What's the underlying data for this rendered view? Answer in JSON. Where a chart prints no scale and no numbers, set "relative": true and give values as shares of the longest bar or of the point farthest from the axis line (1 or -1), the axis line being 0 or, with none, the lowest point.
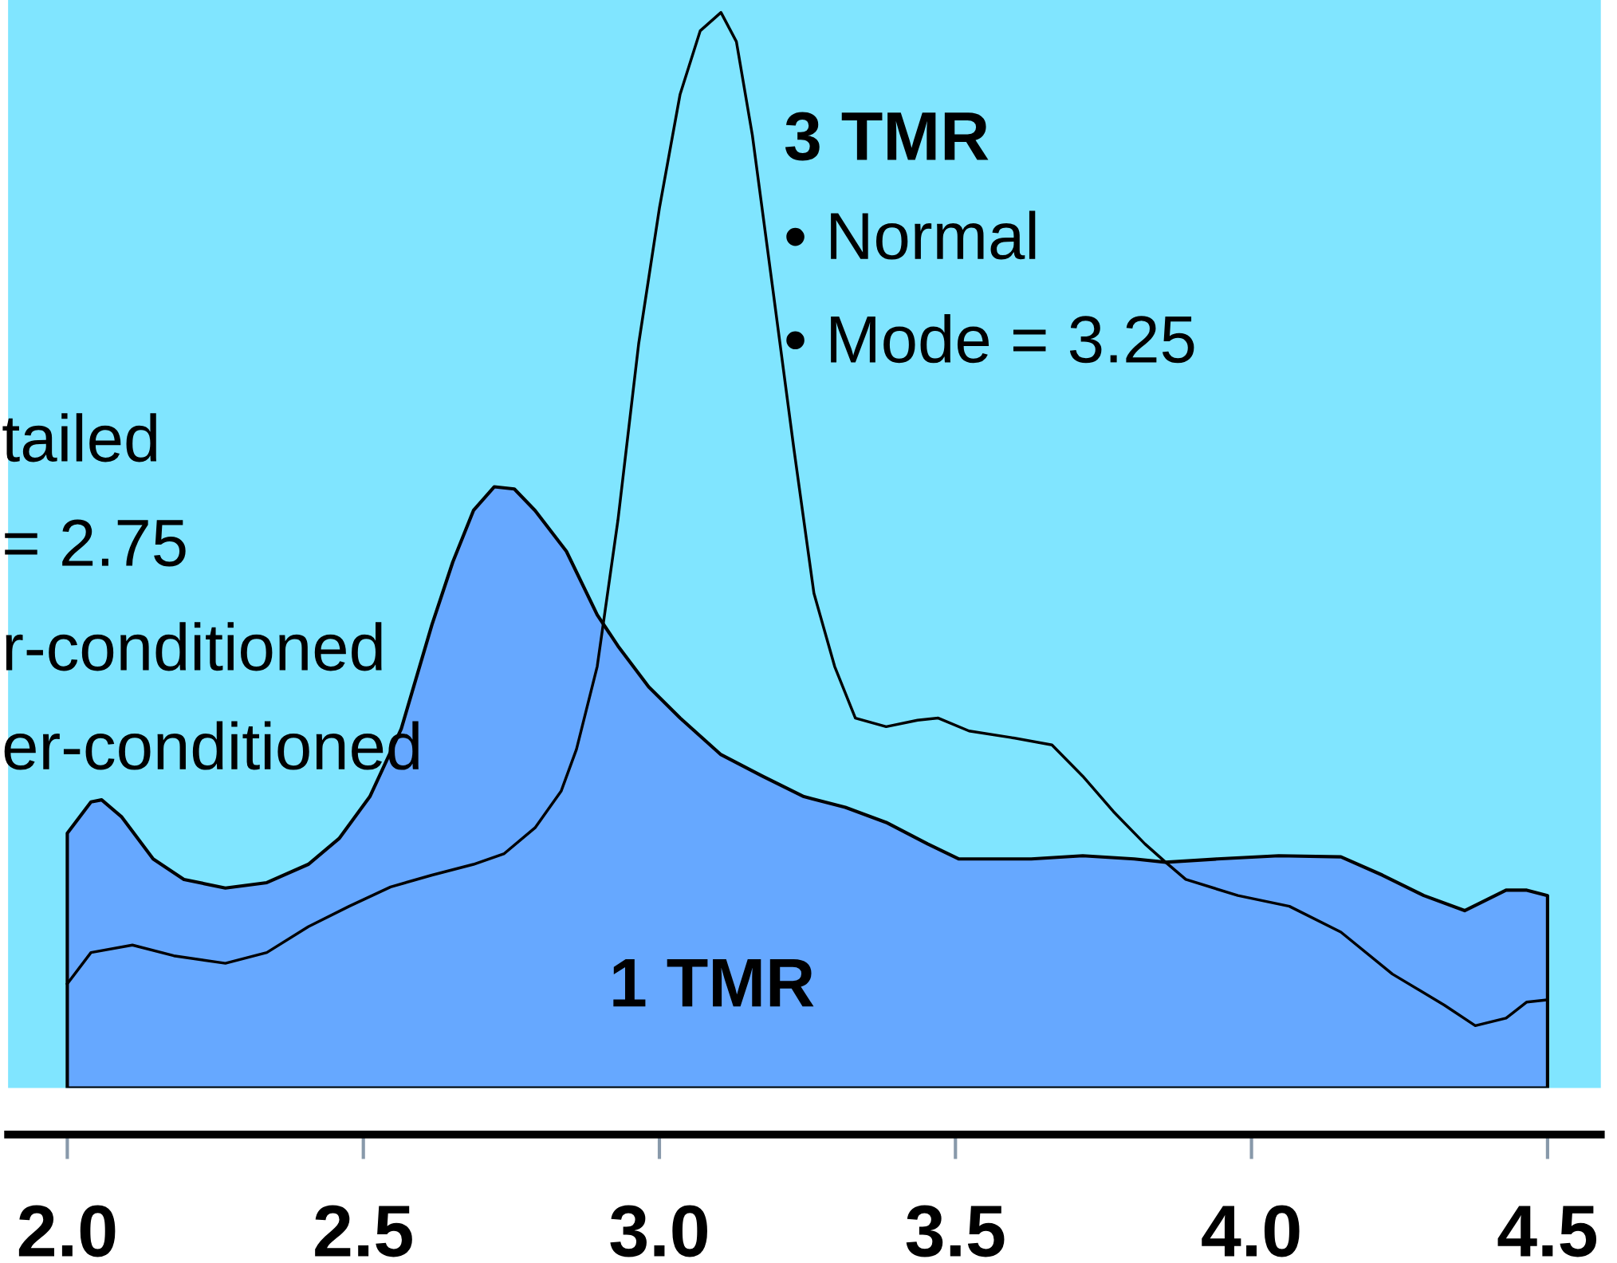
{
  "chart_data": {
    "type": "area",
    "relative": true,
    "xlim": [
      1.9,
      4.59
    ],
    "xticks": [
      {
        "value": 2.0,
        "label": "2.0"
      },
      {
        "value": 2.5,
        "label": "2.5"
      },
      {
        "value": 3.0,
        "label": "3.0"
      },
      {
        "value": 3.5,
        "label": "3.5"
      },
      {
        "value": 4.0,
        "label": "4.0"
      },
      {
        "value": 4.5,
        "label": "4.5"
      }
    ],
    "series": [
      {
        "name": "1 TMR",
        "color": "#66a8ff",
        "x": [
          2.0,
          2.04,
          2.058,
          2.092,
          2.145,
          2.197,
          2.267,
          2.337,
          2.407,
          2.459,
          2.511,
          2.564,
          2.616,
          2.651,
          2.686,
          2.721,
          2.755,
          2.79,
          2.843,
          2.895,
          2.93,
          2.982,
          3.035,
          3.104,
          3.174,
          3.244,
          3.314,
          3.383,
          3.453,
          3.506,
          3.628,
          3.715,
          3.802,
          3.855,
          3.942,
          4.046,
          4.151,
          4.221,
          4.291,
          4.36,
          4.43,
          4.465,
          4.5
        ],
        "values": [
          0.237,
          0.266,
          0.268,
          0.252,
          0.213,
          0.194,
          0.186,
          0.191,
          0.208,
          0.232,
          0.271,
          0.334,
          0.431,
          0.489,
          0.537,
          0.559,
          0.557,
          0.537,
          0.499,
          0.44,
          0.411,
          0.373,
          0.344,
          0.31,
          0.29,
          0.271,
          0.261,
          0.247,
          0.227,
          0.213,
          0.213,
          0.216,
          0.213,
          0.21,
          0.213,
          0.216,
          0.215,
          0.198,
          0.179,
          0.165,
          0.184,
          0.184,
          0.179
        ]
      },
      {
        "name": "3 TMR",
        "type": "line",
        "color": "#000000",
        "x": [
          2.0,
          2.04,
          2.11,
          2.18,
          2.267,
          2.337,
          2.407,
          2.476,
          2.546,
          2.616,
          2.686,
          2.738,
          2.79,
          2.834,
          2.86,
          2.895,
          2.93,
          2.965,
          3.0,
          3.035,
          3.069,
          3.104,
          3.13,
          3.157,
          3.192,
          3.227,
          3.261,
          3.296,
          3.331,
          3.383,
          3.436,
          3.471,
          3.523,
          3.593,
          3.663,
          3.715,
          3.767,
          3.82,
          3.855,
          3.889,
          3.977,
          4.064,
          4.151,
          4.238,
          4.326,
          4.378,
          4.43,
          4.465,
          4.5
        ],
        "values": [
          0.097,
          0.126,
          0.133,
          0.123,
          0.116,
          0.126,
          0.15,
          0.169,
          0.187,
          0.198,
          0.208,
          0.218,
          0.242,
          0.276,
          0.315,
          0.392,
          0.528,
          0.692,
          0.818,
          0.924,
          0.983,
          1.0,
          0.973,
          0.886,
          0.741,
          0.595,
          0.46,
          0.392,
          0.344,
          0.336,
          0.342,
          0.344,
          0.332,
          0.326,
          0.319,
          0.29,
          0.257,
          0.227,
          0.21,
          0.194,
          0.179,
          0.169,
          0.145,
          0.106,
          0.077,
          0.058,
          0.065,
          0.08,
          0.082
        ]
      }
    ],
    "annotations": [
      "• Normal",
      "• Mode = 3.25",
      "tailed",
      "= 2.75",
      "r-conditioned",
      "er-conditioned"
    ]
  }
}
